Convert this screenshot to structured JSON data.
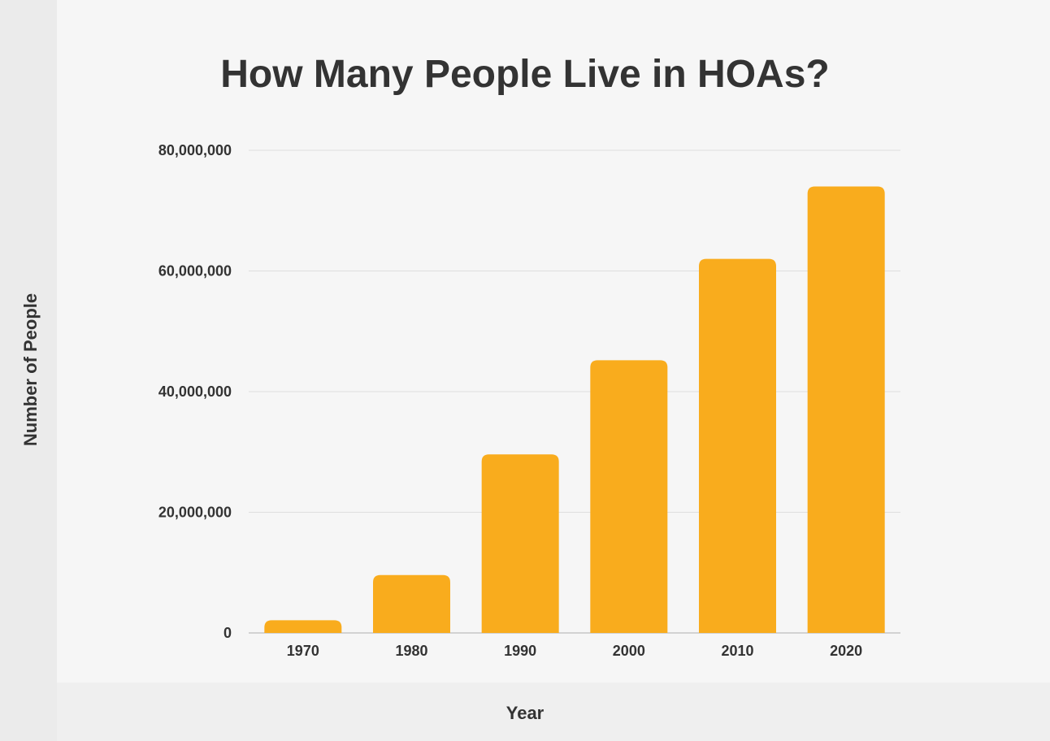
{
  "chart_data": {
    "type": "bar",
    "title": "How Many People Live in HOAs?",
    "xlabel": "Year",
    "ylabel": "Number of People",
    "categories": [
      "1970",
      "1980",
      "1990",
      "2000",
      "2010",
      "2020"
    ],
    "values": [
      2100000,
      9600000,
      29600000,
      45200000,
      62000000,
      74000000
    ],
    "ylim": [
      0,
      80000000
    ],
    "yticks": [
      0,
      20000000,
      40000000,
      60000000,
      80000000
    ],
    "ytick_labels": [
      "0",
      "20,000,000",
      "40,000,000",
      "60,000,000",
      "80,000,000"
    ],
    "bar_color": "#f9ac1d",
    "grid": true,
    "legend": "none"
  }
}
